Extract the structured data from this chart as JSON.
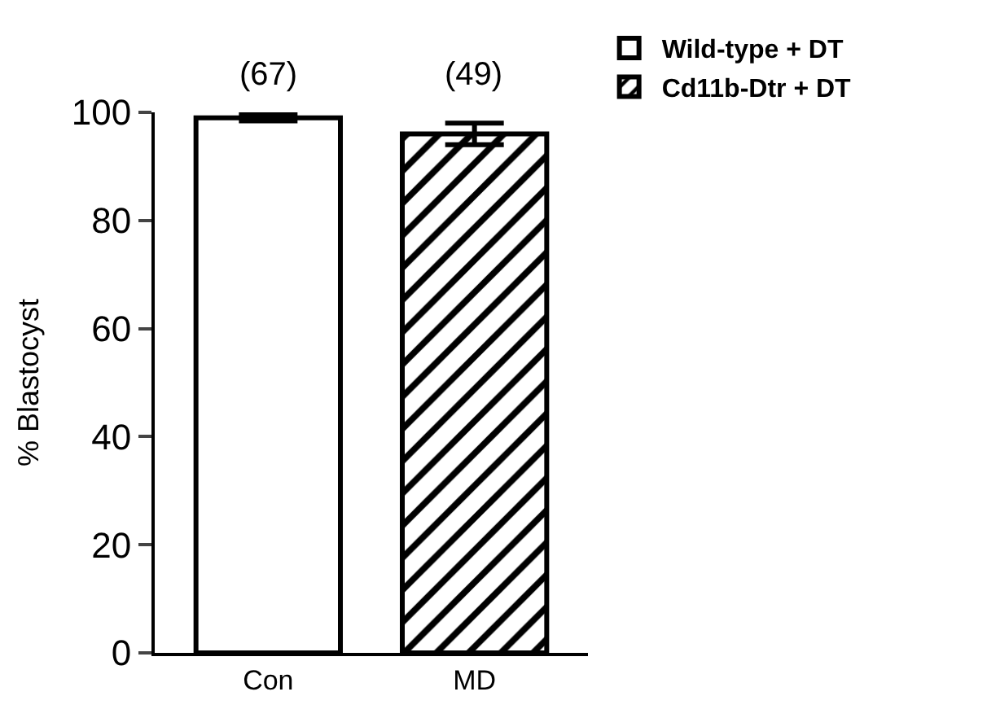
{
  "chart_data": {
    "type": "bar",
    "ylabel": "% Blastocyst",
    "categories": [
      "Con",
      "MD"
    ],
    "series": [
      {
        "name": "Wild-type + DT",
        "color": "#ffffff",
        "values": [
          99,
          null
        ],
        "errors": [
          0.6,
          null
        ]
      },
      {
        "name": "Cd11b-Dtr + DT",
        "color": "#000000",
        "values": [
          null,
          96
        ],
        "errors": [
          null,
          2
        ]
      }
    ],
    "annotations": [
      "(67)",
      "(49)"
    ],
    "ylim": [
      0,
      100
    ],
    "yticks": [
      0,
      20,
      40,
      60,
      80,
      100
    ],
    "legend": "top right"
  }
}
